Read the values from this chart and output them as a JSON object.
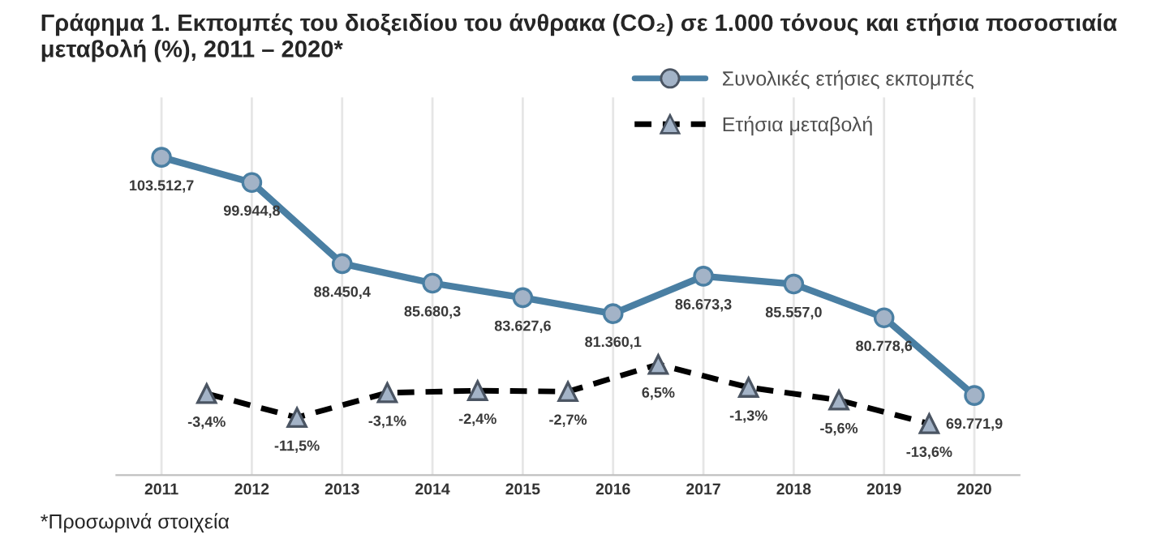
{
  "chart_data": {
    "type": "line",
    "title": "Γράφημα 1. Εκπομπές του διοξειδίου του άνθρακα (CO₂) σε 1.000 τόνους και ετήσια ποσοστιαία μεταβολή (%), 2011 – 2020*",
    "x": [
      2011,
      2012,
      2013,
      2014,
      2015,
      2016,
      2017,
      2018,
      2019,
      2020
    ],
    "xlim": [
      2010.5,
      2020.5
    ],
    "xticks": [
      2011,
      2012,
      2013,
      2014,
      2015,
      2016,
      2017,
      2018,
      2019,
      2020
    ],
    "ylim": [
      58500,
      112000
    ],
    "y2lim": [
      -31,
      97
    ],
    "series": [
      {
        "name": "Συνολικές ετήσιες εκπομπές",
        "color": "#4a7fa3",
        "marker": "circle",
        "line_style": "solid",
        "value_labels": [
          "103.512,7",
          "99.944,8",
          "88.450,4",
          "85.680,3",
          "83.627,6",
          "81.360,1",
          "86.673,3",
          "85.557,0",
          "80.778,6",
          "69.771,9"
        ],
        "values": [
          103512.7,
          99944.8,
          88450.4,
          85680.3,
          83627.6,
          81360.1,
          86673.3,
          85557.0,
          80778.6,
          69771.9
        ]
      },
      {
        "name": "Ετήσια μεταβολή",
        "color": "#000000",
        "marker": "triangle",
        "line_style": "dashed",
        "axis": "y2",
        "x": [
          2011.5,
          2012.5,
          2013.5,
          2014.5,
          2015.5,
          2016.5,
          2017.5,
          2018.5,
          2019.5
        ],
        "value_labels": [
          "-3,4%",
          "-11,5%",
          "-3,1%",
          "-2,4%",
          "-2,7%",
          "6,5%",
          "-1,3%",
          "-5,6%",
          "-13,6%"
        ],
        "values": [
          -3.4,
          -11.5,
          -3.1,
          -2.4,
          -2.7,
          6.5,
          -1.3,
          -5.6,
          -13.6
        ]
      }
    ],
    "grid": "x",
    "legend": "top right",
    "tick_labels": "x",
    "annotations": [
      "*Προσωρινά στοιχεία"
    ]
  }
}
